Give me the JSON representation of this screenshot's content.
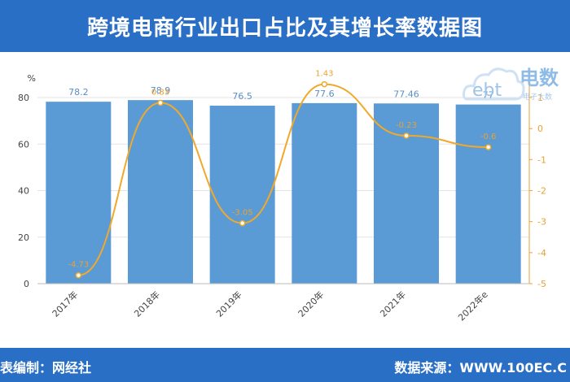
{
  "header": {
    "title": "跨境电商行业出口占比及其增长率数据图"
  },
  "footer": {
    "left": "表编制：网经社",
    "right": "数据来源：WWW.100EC.C"
  },
  "logo": {
    "letters": "ebt",
    "text": "电数",
    "subtext": "电子大数"
  },
  "colors": {
    "header_bg": "#2a6fc6",
    "bar": "#5b9bd5",
    "line": "#f0a92a",
    "right_axis": "#e8a232"
  },
  "chart_data": {
    "type": "bar",
    "categories": [
      "2017年",
      "2018年",
      "2019年",
      "2020年",
      "2021年",
      "2022年e"
    ],
    "series": [
      {
        "values": [
          78.2,
          78.9,
          76.5,
          77.6,
          77.46,
          77
        ],
        "labels": [
          "78.2",
          "78.9",
          "76.5",
          "77.6",
          "77.46",
          "77"
        ],
        "axis": "left",
        "type": "bar"
      },
      {
        "values": [
          -4.73,
          0.83,
          -3.05,
          1.43,
          -0.23,
          -0.6
        ],
        "labels": [
          "-4.73",
          "0.83",
          "-3.05",
          "1.43",
          "-0.23",
          "-0.6"
        ],
        "axis": "right",
        "type": "line"
      }
    ],
    "y_left": {
      "unit": "%",
      "ylim": [
        0,
        80
      ],
      "ticks": [
        "0",
        "20",
        "40",
        "60",
        "80"
      ]
    },
    "y_right": {
      "ylim": [
        -5,
        1
      ],
      "ticks": [
        "1",
        "0",
        "-1",
        "-2",
        "-3",
        "-4",
        "-5"
      ]
    },
    "grid": true
  }
}
